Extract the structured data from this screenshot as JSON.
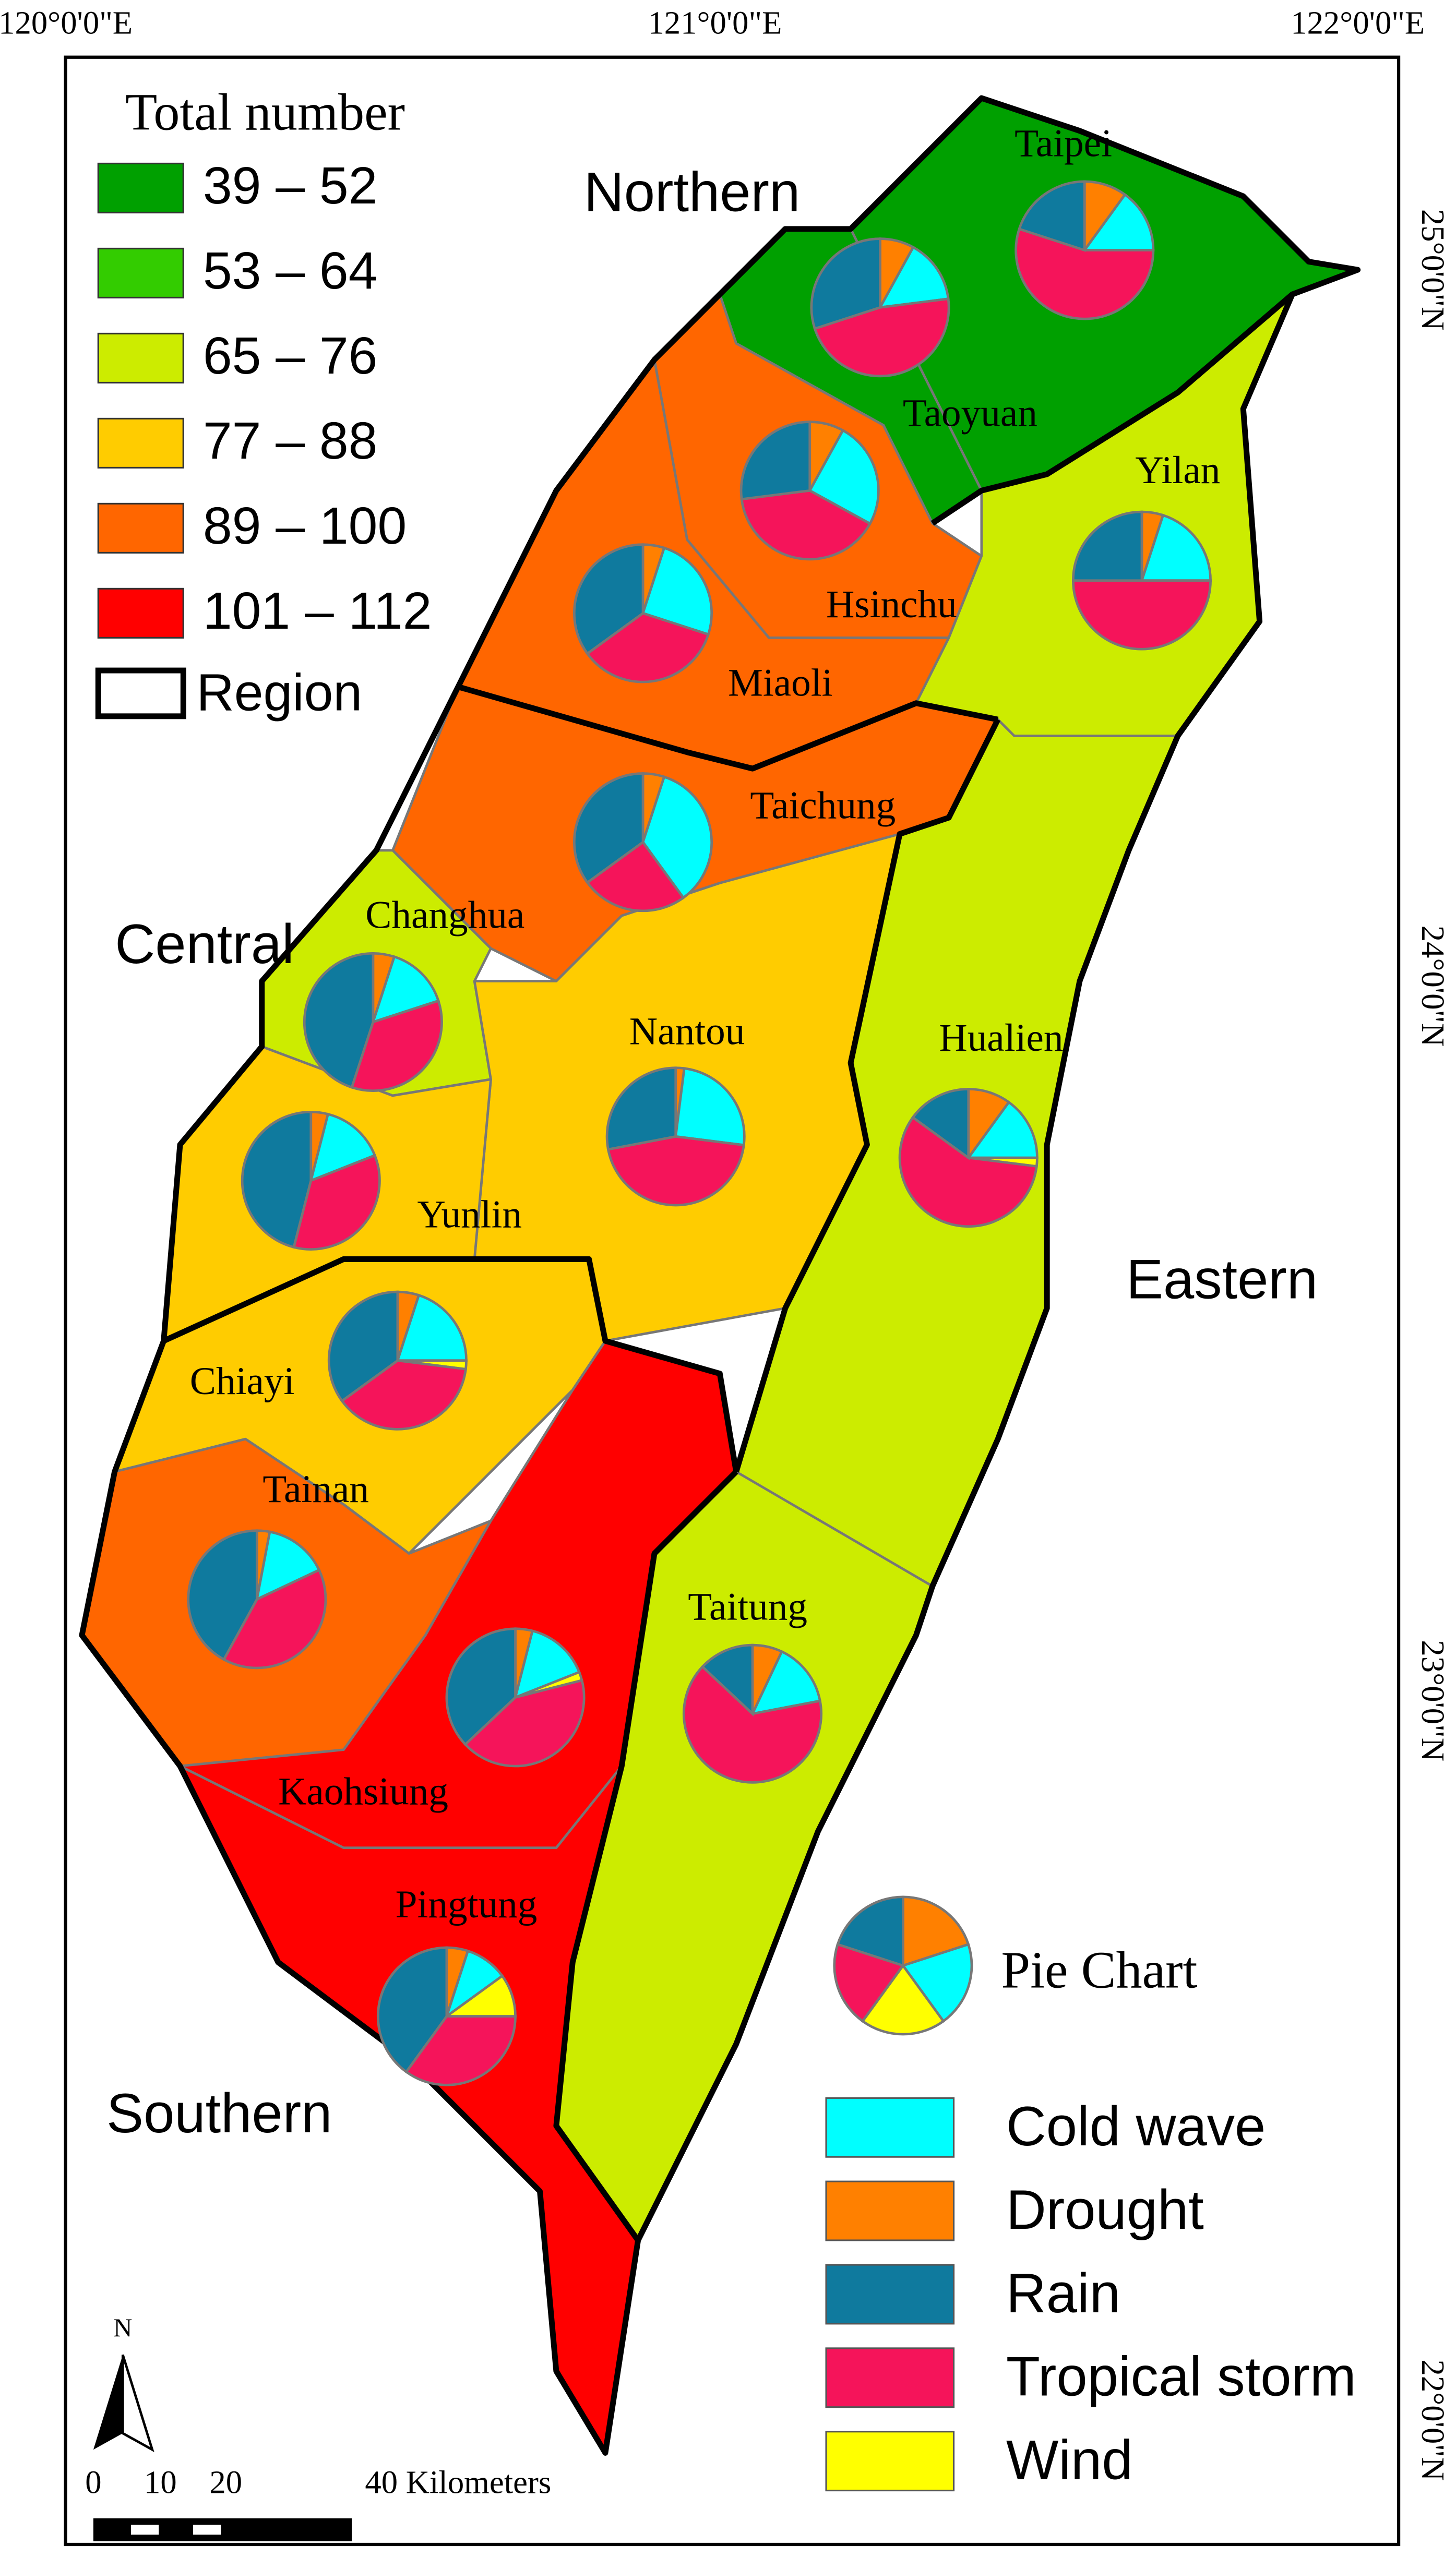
{
  "coordinates": {
    "longitude": [
      "120°0'0\"E",
      "121°0'0\"E",
      "122°0'0\"E"
    ],
    "latitude": [
      "25°0'0\"N",
      "24°0'0\"N",
      "23°0'0\"N",
      "22°0'0\"N"
    ]
  },
  "legend": {
    "title": "Total number",
    "classes": [
      {
        "label": "39 – 52",
        "color": "#00a000"
      },
      {
        "label": "53 – 64",
        "color": "#33cc00"
      },
      {
        "label": "65 – 76",
        "color": "#ccec00"
      },
      {
        "label": "77 – 88",
        "color": "#ffcc00"
      },
      {
        "label": "89 – 100",
        "color": "#ff6600"
      },
      {
        "label": "101 – 112",
        "color": "#ff0000"
      }
    ],
    "region": "Region"
  },
  "regions": [
    "Northern",
    "Central",
    "Eastern",
    "Southern"
  ],
  "pie_legend": {
    "title": "Pie Chart",
    "categories": [
      {
        "name": "Cold wave",
        "color": "#00ffff"
      },
      {
        "name": "Drought",
        "color": "#ff8000"
      },
      {
        "name": "Rain",
        "color": "#0f7a9e"
      },
      {
        "name": "Tropical storm",
        "color": "#f5145a"
      },
      {
        "name": "Wind",
        "color": "#ffff00"
      }
    ]
  },
  "counties": [
    {
      "name": "Taipei",
      "color": "#00a000",
      "values": [
        15,
        10,
        20,
        55,
        0
      ]
    },
    {
      "name": "Taoyuan",
      "color": "#00a000",
      "values": [
        15,
        8,
        30,
        47,
        0
      ]
    },
    {
      "name": "Hsinchu",
      "color": "#ff6600",
      "values": [
        25,
        8,
        27,
        40,
        0
      ]
    },
    {
      "name": "Miaoli",
      "color": "#ff6600",
      "values": [
        25,
        5,
        35,
        35,
        0
      ]
    },
    {
      "name": "Yilan",
      "color": "#ccec00",
      "values": [
        20,
        5,
        25,
        50,
        0
      ]
    },
    {
      "name": "Taichung",
      "color": "#ff6600",
      "values": [
        35,
        5,
        35,
        25,
        0
      ]
    },
    {
      "name": "Changhua",
      "color": "#ccec00",
      "values": [
        15,
        5,
        45,
        35,
        0
      ]
    },
    {
      "name": "Nantou",
      "color": "#ffcc00",
      "values": [
        25,
        2,
        28,
        45,
        0
      ]
    },
    {
      "name": "Hualien",
      "color": "#ccec00",
      "values": [
        15,
        10,
        15,
        58,
        2
      ]
    },
    {
      "name": "Yunlin",
      "color": "#ffcc00",
      "values": [
        15,
        4,
        46,
        35,
        0
      ]
    },
    {
      "name": "Chiayi",
      "color": "#ffcc00",
      "values": [
        20,
        5,
        35,
        38,
        2
      ]
    },
    {
      "name": "Tainan",
      "color": "#ff6600",
      "values": [
        15,
        3,
        42,
        40,
        0
      ]
    },
    {
      "name": "Kaohsiung",
      "color": "#ff0000",
      "values": [
        15,
        4,
        37,
        42,
        2
      ]
    },
    {
      "name": "Taitung",
      "color": "#ccec00",
      "values": [
        15,
        7,
        13,
        65,
        0
      ]
    },
    {
      "name": "Pingtung",
      "color": "#ff0000",
      "values": [
        10,
        5,
        40,
        35,
        10
      ]
    }
  ],
  "scale_bar": {
    "labels": [
      "0",
      "10",
      "20",
      "40 Kilometers"
    ]
  },
  "north": "N"
}
